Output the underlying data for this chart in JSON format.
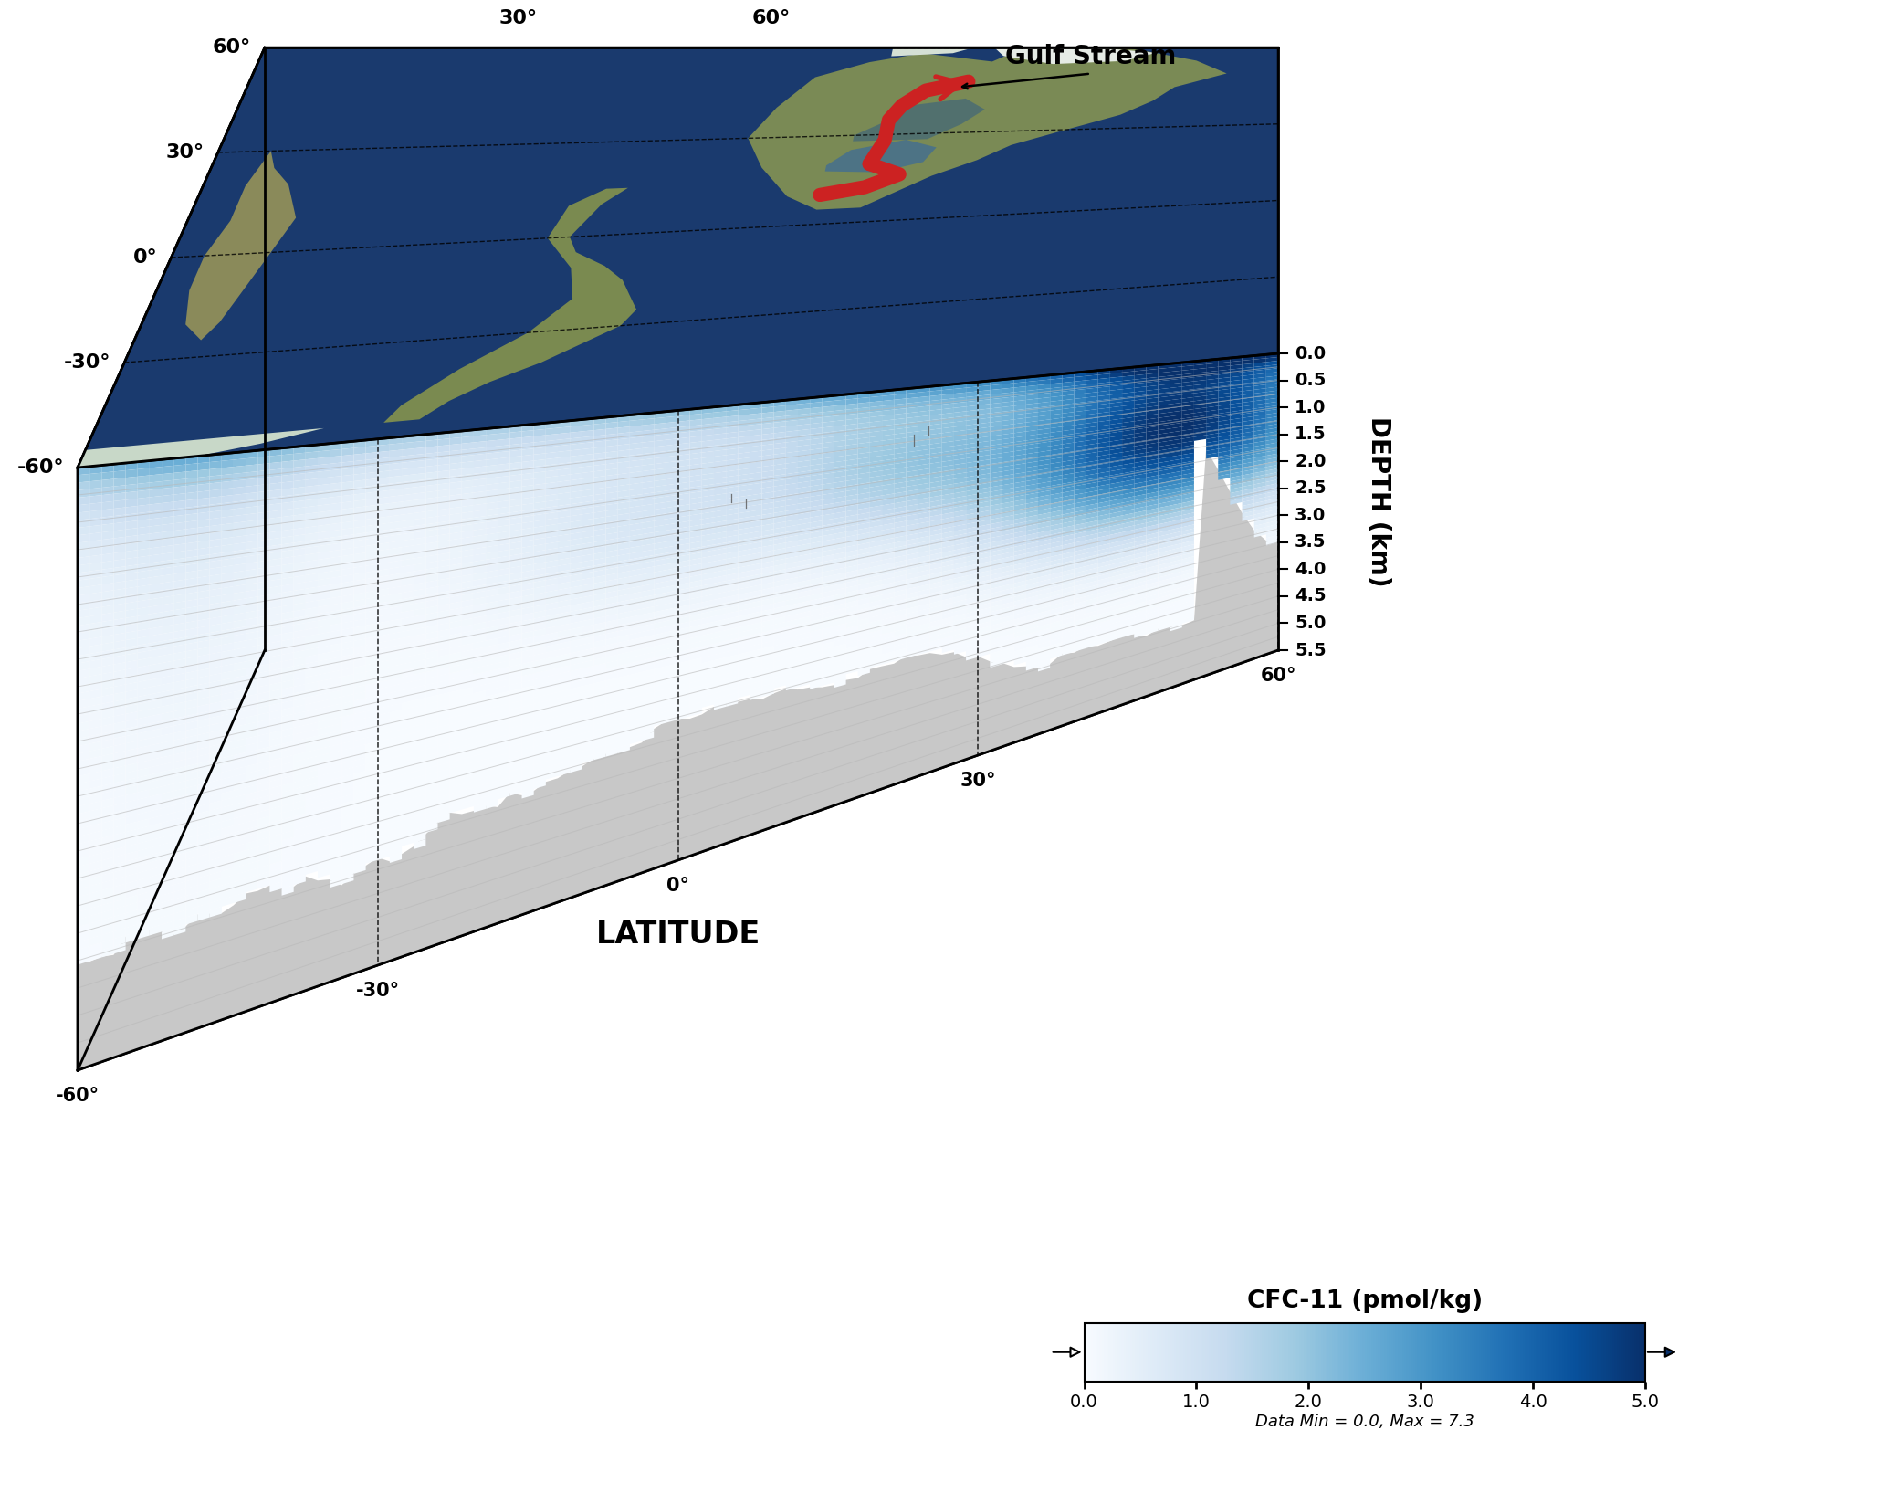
{
  "depth_label": "DEPTH (km)",
  "lat_label": "LATITUDE",
  "colorbar_title": "CFC-11 (pmol/kg)",
  "colorbar_min": 0.0,
  "colorbar_max": 5.0,
  "data_note": "Data Min = 0.0, Max = 7.3",
  "depth_ticks": [
    0.0,
    0.5,
    1.0,
    1.5,
    2.0,
    2.5,
    3.0,
    3.5,
    4.0,
    4.5,
    5.0,
    5.5
  ],
  "lat_ticks_left": [
    "60°",
    "30°",
    "0°",
    "-30°",
    "-60°"
  ],
  "lat_ticks_top": [
    "60°",
    "30°"
  ],
  "lat_ticks_bottom": [
    "60°",
    "30°",
    "0°",
    "-30°",
    "-60°"
  ],
  "gulf_stream_label": "Gulf Stream",
  "background_color": "#ffffff",
  "cfc_colormap": "Blues",
  "stripe_color": "#b8b8b8",
  "box_gray_light": "#d2d2d2",
  "box_gray_dark": "#c0c0c0",
  "ocean_color": "#1a3a6e",
  "ocean_shallow": "#4a8ab0"
}
